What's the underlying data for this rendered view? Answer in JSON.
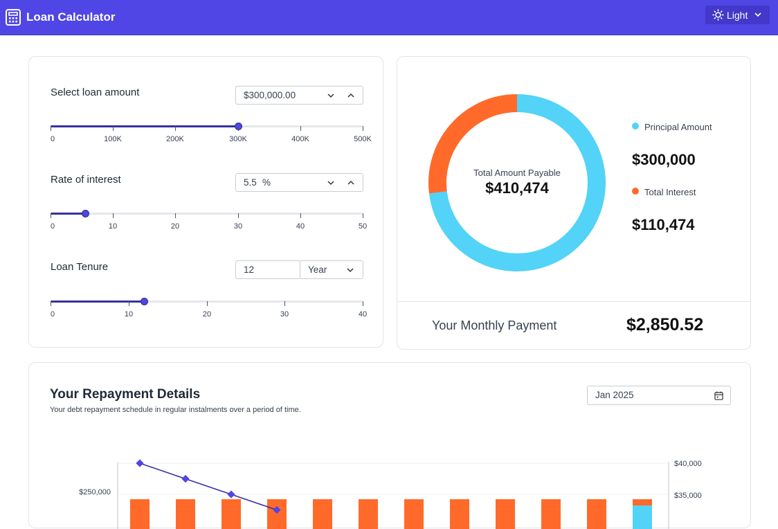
{
  "header": {
    "title": "Loan Calculator",
    "theme_label": "Light"
  },
  "loan_amount": {
    "label": "Select loan amount",
    "value": "$300,000.00",
    "slider_fraction": 0.6,
    "ticks": [
      "0",
      "100K",
      "200K",
      "300K",
      "400K",
      "500K"
    ]
  },
  "interest": {
    "label": "Rate of interest",
    "value": "5.5",
    "unit": "%",
    "slider_fraction": 0.11,
    "ticks": [
      "0",
      "10",
      "20",
      "30",
      "40",
      "50"
    ]
  },
  "tenure": {
    "label": "Loan Tenure",
    "value": "12",
    "unit_select": "Year",
    "slider_fraction": 0.3,
    "ticks": [
      "0",
      "10",
      "20",
      "30",
      "40"
    ]
  },
  "summary": {
    "center_label": "Total Amount Payable",
    "center_value": "$410,474",
    "principal_label": "Principal Amount",
    "principal_value": "$300,000",
    "interest_label": "Total Interest",
    "interest_value": "$110,474",
    "monthly_label": "Your Monthly Payment",
    "monthly_value": "$2,850.52"
  },
  "chart_data": {
    "type": "bar",
    "principal": 300000,
    "interest": 110474,
    "colors": {
      "principal": "#52d3f7",
      "interest": "#ff6a2b"
    }
  },
  "repayment": {
    "title": "Your Repayment Details",
    "subtitle": "Your debt repayment schedule in regular instalments over a period of time.",
    "date_value": "Jan 2025",
    "chart": {
      "type": "bar",
      "left_axis_labels": [
        "$250,000"
      ],
      "right_axis_labels": [
        "$40,000",
        "$35,000"
      ],
      "bar_count": 12,
      "line_points": [
        40000,
        37500,
        35000,
        32500
      ]
    }
  },
  "colors": {
    "accent": "#4f46e5",
    "principal": "#52d3f7",
    "interest": "#ff6a2b"
  }
}
